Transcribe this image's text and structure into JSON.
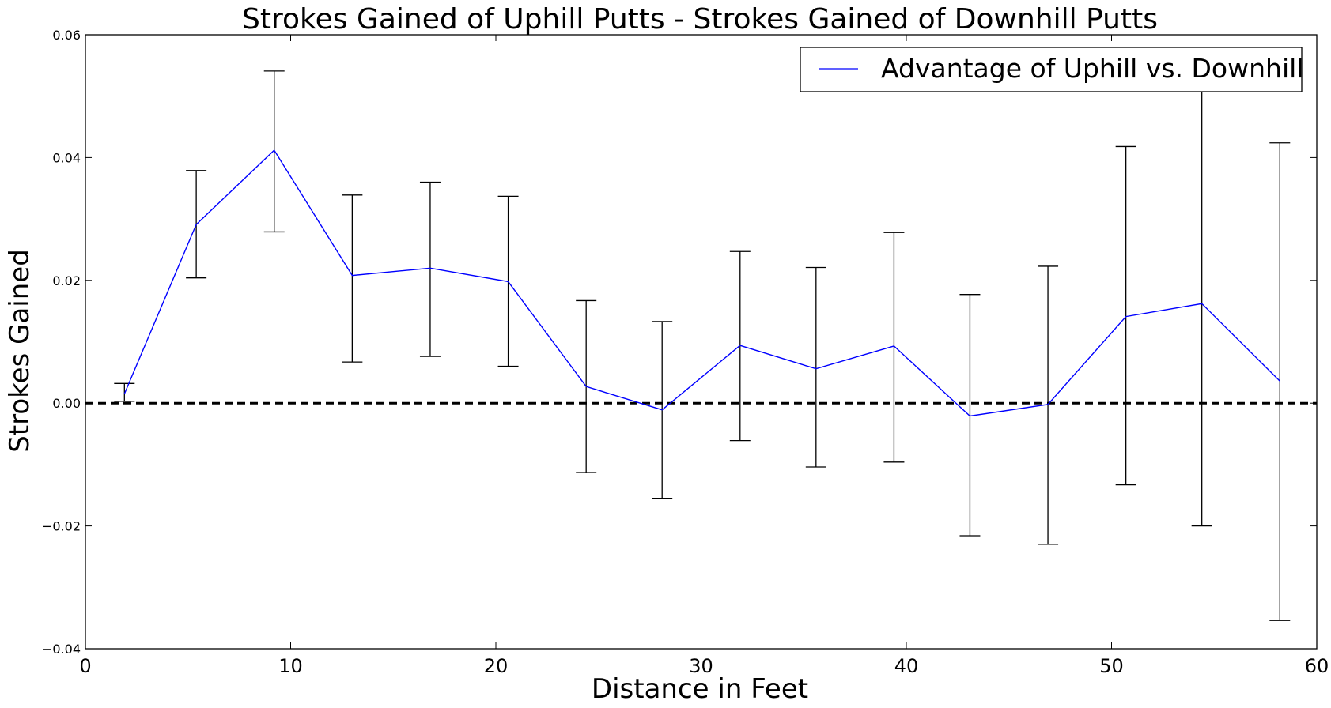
{
  "chart_data": {
    "type": "line",
    "title": "Strokes Gained of Uphill Putts - Strokes Gained of Downhill Putts",
    "xlabel": "Distance in Feet",
    "ylabel": "Strokes Gained",
    "xlim": [
      0,
      60
    ],
    "ylim": [
      -0.04,
      0.06
    ],
    "xticks": [
      0,
      10,
      20,
      30,
      40,
      50,
      60
    ],
    "xtick_labels": [
      "0",
      "10",
      "20",
      "30",
      "40",
      "50",
      "60"
    ],
    "yticks": [
      -0.04,
      -0.02,
      0.0,
      0.02,
      0.04,
      0.06
    ],
    "ytick_labels": [
      "−0.04",
      "−0.02",
      "0.00",
      "0.02",
      "0.04",
      "0.06"
    ],
    "grid": false,
    "legend_position": "top-right",
    "reference_line": {
      "y": 0.0,
      "style": "dashed",
      "color": "#000000"
    },
    "series": [
      {
        "name": "Advantage of Uphill vs. Downhill",
        "color": "#0000ff",
        "x": [
          1.9,
          5.4,
          9.2,
          13.0,
          16.8,
          20.6,
          24.4,
          28.1,
          31.9,
          35.6,
          39.4,
          43.1,
          46.9,
          50.7,
          54.4,
          58.2
        ],
        "y": [
          0.0015,
          0.0291,
          0.0412,
          0.0208,
          0.022,
          0.0198,
          0.0027,
          -0.0011,
          0.0094,
          0.0056,
          0.0093,
          -0.0021,
          -0.0002,
          0.0141,
          0.0162,
          0.0036
        ],
        "err_low": [
          0.0003,
          0.0204,
          0.0279,
          0.0067,
          0.0076,
          0.006,
          -0.0113,
          -0.0155,
          -0.0061,
          -0.0104,
          -0.0096,
          -0.0216,
          -0.023,
          -0.0133,
          -0.02,
          -0.0354
        ],
        "err_high": [
          0.0032,
          0.0379,
          0.0541,
          0.0339,
          0.036,
          0.0337,
          0.0167,
          0.0133,
          0.0247,
          0.0221,
          0.0278,
          0.0177,
          0.0223,
          0.0418,
          0.0507,
          0.0424
        ]
      }
    ],
    "colors": {
      "series": "#0000ff",
      "errorbar": "#000000",
      "axes": "#000000"
    }
  }
}
